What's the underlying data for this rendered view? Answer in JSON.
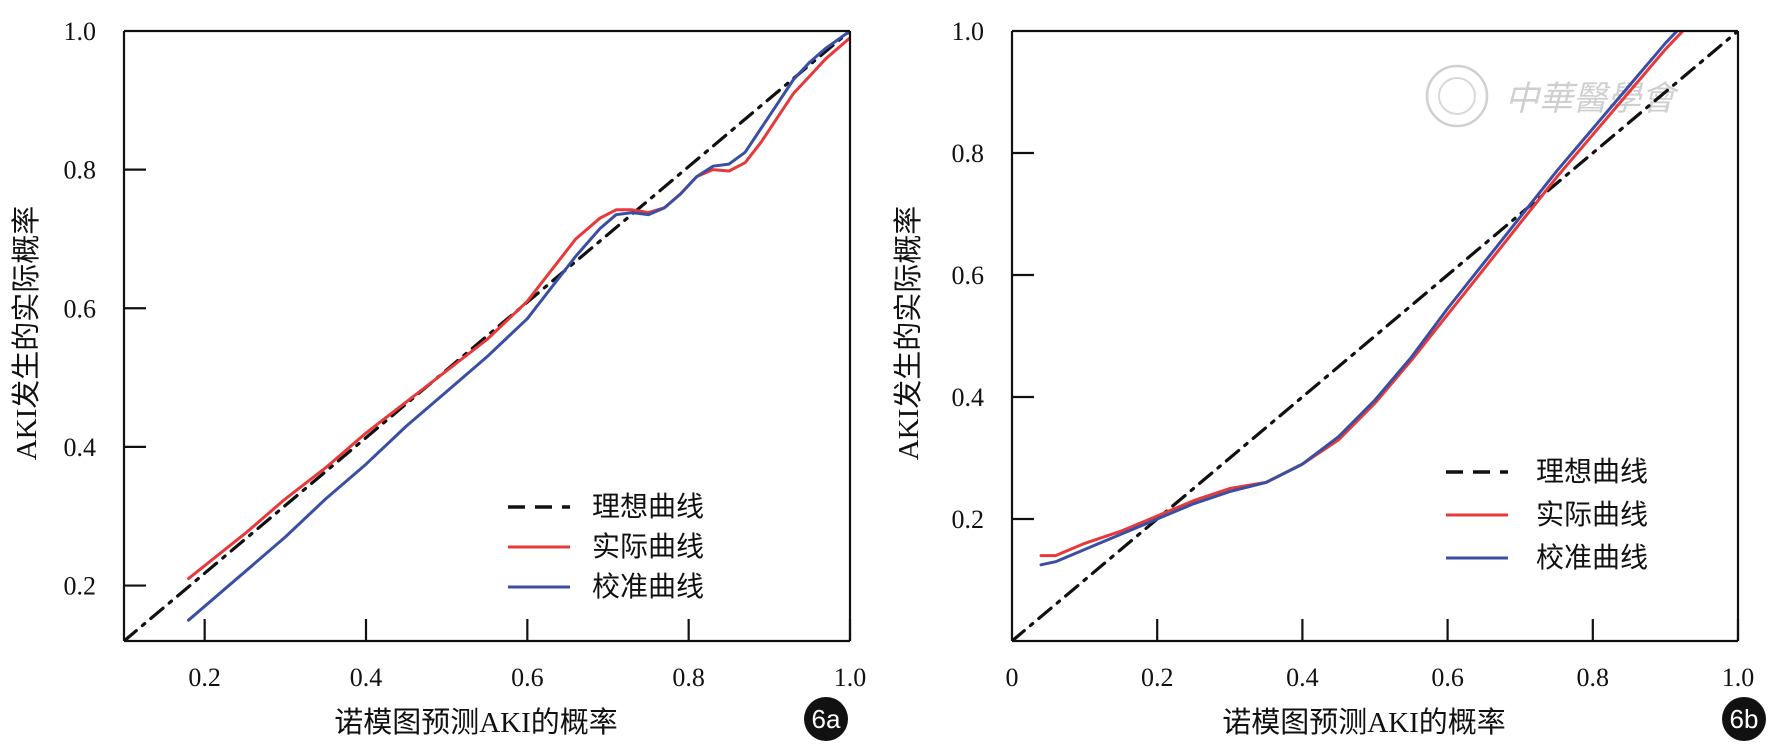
{
  "colors": {
    "ideal": "#111111",
    "actual": "#e8393a",
    "calibrated": "#3a4fa3",
    "axis": "#111111",
    "badge": "#111111"
  },
  "watermark": {
    "text": "中華醫學會"
  },
  "chart_data": [
    {
      "type": "line",
      "panel_label": "6a",
      "xlabel": "诺模图预测AKI的概率",
      "ylabel": "AKI发生的实际概率",
      "xlim": [
        0.1,
        1.0
      ],
      "ylim": [
        0.12,
        1.0
      ],
      "xticks": [
        0.2,
        0.4,
        0.6,
        0.8,
        1.0
      ],
      "xtick_labels": [
        "0.2",
        "0.4",
        "0.6",
        "0.8",
        "1.0"
      ],
      "yticks": [
        0.2,
        0.4,
        0.6,
        0.8,
        1.0
      ],
      "ytick_labels": [
        "0.2",
        "0.4",
        "0.6",
        "0.8",
        "1.0"
      ],
      "grid": false,
      "legend_position": "bottom-right",
      "series": [
        {
          "key": "ideal",
          "name": "理想曲线",
          "style": "dashed",
          "x": [
            0.1,
            1.0
          ],
          "y": [
            0.12,
            1.0
          ]
        },
        {
          "key": "actual",
          "name": "实际曲线",
          "style": "solid",
          "x": [
            0.18,
            0.25,
            0.3,
            0.35,
            0.4,
            0.45,
            0.5,
            0.55,
            0.6,
            0.63,
            0.66,
            0.69,
            0.71,
            0.73,
            0.75,
            0.77,
            0.79,
            0.81,
            0.83,
            0.85,
            0.87,
            0.89,
            0.91,
            0.93,
            0.95,
            0.97,
            1.0
          ],
          "y": [
            0.21,
            0.275,
            0.325,
            0.37,
            0.42,
            0.465,
            0.51,
            0.555,
            0.61,
            0.655,
            0.7,
            0.73,
            0.742,
            0.742,
            0.738,
            0.745,
            0.765,
            0.79,
            0.8,
            0.798,
            0.81,
            0.84,
            0.875,
            0.91,
            0.935,
            0.96,
            0.99
          ]
        },
        {
          "key": "calibrated",
          "name": "校准曲线",
          "style": "solid",
          "x": [
            0.18,
            0.25,
            0.3,
            0.35,
            0.4,
            0.45,
            0.5,
            0.55,
            0.6,
            0.63,
            0.66,
            0.69,
            0.71,
            0.73,
            0.75,
            0.77,
            0.79,
            0.81,
            0.83,
            0.85,
            0.87,
            0.89,
            0.91,
            0.93,
            0.95,
            0.97,
            1.0
          ],
          "y": [
            0.15,
            0.22,
            0.27,
            0.325,
            0.375,
            0.43,
            0.48,
            0.53,
            0.585,
            0.63,
            0.675,
            0.715,
            0.735,
            0.738,
            0.735,
            0.745,
            0.765,
            0.79,
            0.805,
            0.808,
            0.825,
            0.86,
            0.895,
            0.93,
            0.955,
            0.975,
            1.0
          ]
        }
      ]
    },
    {
      "type": "line",
      "panel_label": "6b",
      "xlabel": "诺模图预测AKI的概率",
      "ylabel": "AKI发生的实际概率",
      "xlim": [
        0.0,
        1.0
      ],
      "ylim": [
        0.0,
        1.0
      ],
      "xticks": [
        0.0,
        0.2,
        0.4,
        0.6,
        0.8,
        1.0
      ],
      "xtick_labels": [
        "0",
        "0.2",
        "0.4",
        "0.6",
        "0.8",
        "1.0"
      ],
      "yticks": [
        0.2,
        0.4,
        0.6,
        0.8,
        1.0
      ],
      "ytick_labels": [
        "0.2",
        "0.4",
        "0.6",
        "0.8",
        "1.0"
      ],
      "grid": false,
      "legend_position": "center-right",
      "series": [
        {
          "key": "ideal",
          "name": "理想曲线",
          "style": "dashed",
          "x": [
            0.0,
            1.0
          ],
          "y": [
            0.0,
            1.0
          ]
        },
        {
          "key": "actual",
          "name": "实际曲线",
          "style": "solid",
          "x": [
            0.04,
            0.06,
            0.1,
            0.15,
            0.2,
            0.25,
            0.3,
            0.35,
            0.4,
            0.45,
            0.5,
            0.55,
            0.6,
            0.65,
            0.7,
            0.75,
            0.8,
            0.85,
            0.9,
            0.94
          ],
          "y": [
            0.14,
            0.14,
            0.16,
            0.18,
            0.205,
            0.23,
            0.25,
            0.26,
            0.29,
            0.33,
            0.39,
            0.46,
            0.535,
            0.61,
            0.685,
            0.76,
            0.83,
            0.9,
            0.97,
            1.02
          ]
        },
        {
          "key": "calibrated",
          "name": "校准曲线",
          "style": "solid",
          "x": [
            0.04,
            0.06,
            0.1,
            0.15,
            0.2,
            0.25,
            0.3,
            0.35,
            0.4,
            0.45,
            0.5,
            0.55,
            0.6,
            0.65,
            0.7,
            0.75,
            0.8,
            0.85,
            0.9,
            0.94
          ],
          "y": [
            0.125,
            0.13,
            0.15,
            0.175,
            0.2,
            0.225,
            0.245,
            0.26,
            0.29,
            0.335,
            0.395,
            0.465,
            0.545,
            0.62,
            0.695,
            0.77,
            0.84,
            0.91,
            0.98,
            1.03
          ]
        }
      ]
    }
  ]
}
